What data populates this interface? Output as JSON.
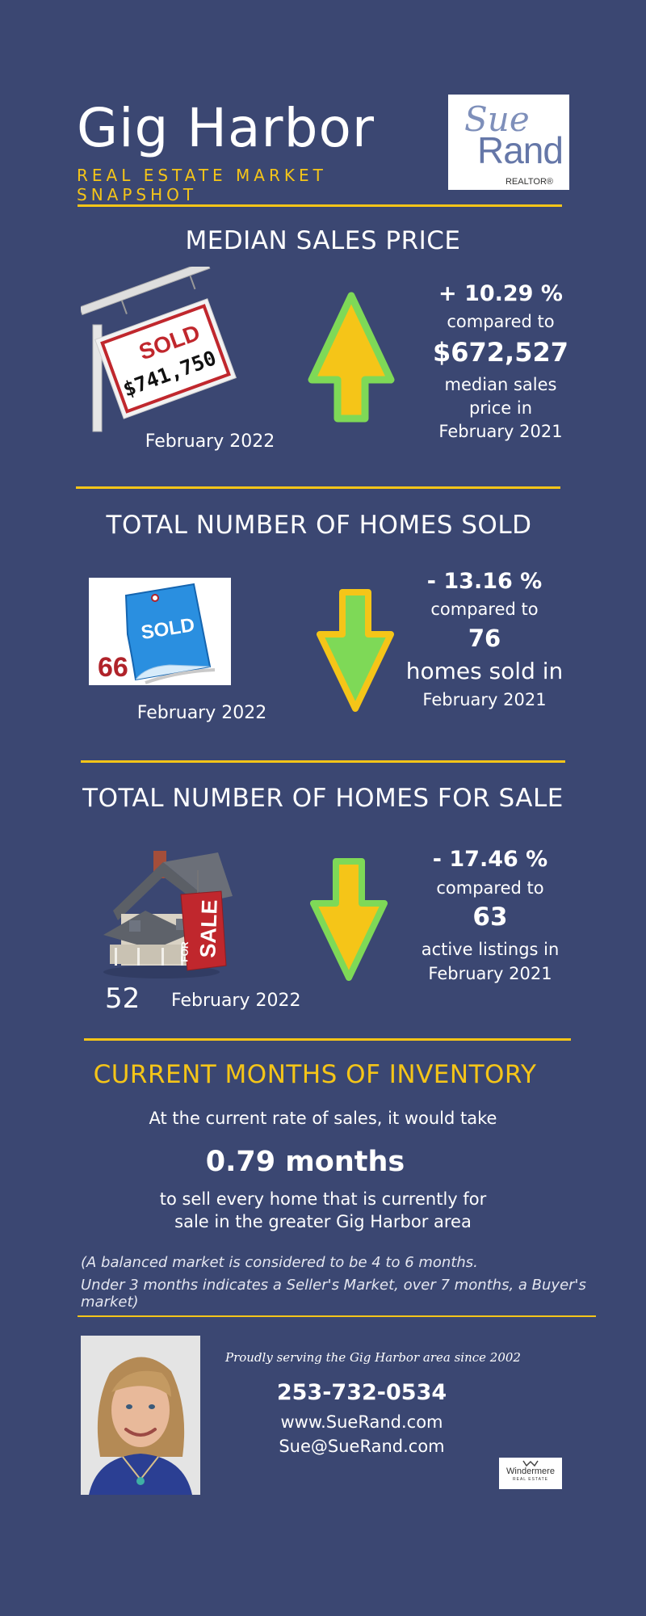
{
  "header": {
    "title": "Gig Harbor",
    "subtitle": "REAL ESTATE MARKET SNAPSHOT",
    "logo_first": "Sue",
    "logo_last": "Rand",
    "logo_realtor": "REALTOR®"
  },
  "median": {
    "heading": "MEDIAN SALES PRICE",
    "sign_sold": "SOLD",
    "sign_price": "$741,750",
    "date": "February  2022",
    "change": "+ 10.29 %",
    "compared": "compared to",
    "prev_value": "$672,527",
    "desc_line1": "median sales",
    "desc_line2": "price in",
    "prev_date": "February  2021",
    "arrow": "up-arrow-icon"
  },
  "sold": {
    "heading": "TOTAL NUMBER OF HOMES SOLD",
    "tag_label": "SOLD",
    "count": "66",
    "date": "February  2022",
    "change": "- 13.16 %",
    "compared": "compared to",
    "prev_value": "76",
    "desc": "homes sold in",
    "prev_date": "February  2021",
    "arrow": "down-arrow-icon"
  },
  "for_sale": {
    "heading": "TOTAL NUMBER OF HOMES FOR SALE",
    "sign_for": "FOR",
    "sign_sale": "SALE",
    "count": "52",
    "date": "February 2022",
    "change": "- 17.46 %",
    "compared": "compared to",
    "prev_value": "63",
    "desc": "active listings in",
    "prev_date": "February  2021",
    "arrow": "down-arrow-icon"
  },
  "inventory": {
    "heading": "CURRENT MONTHS OF INVENTORY",
    "line1": "At the current rate of sales, it would take",
    "value": "0.79 months",
    "line2": "to sell every home that is currently for",
    "line3": "sale in the greater Gig Harbor area",
    "note1": "(A balanced market is considered to be 4 to 6 months.",
    "note2": "Under 3 months indicates a Seller's Market, over 7 months, a Buyer's market)"
  },
  "contact": {
    "tagline": "Proudly serving the Gig Harbor area since 2002",
    "phone": "253-732-0534",
    "website": "www.SueRand.com",
    "email": "Sue@SueRand.com",
    "brokerage": "Windermere",
    "brokerage_sub": "REAL ESTATE"
  },
  "colors": {
    "background": "#3b4772",
    "accent": "#f5c518",
    "arrow_fill": "#f5c518",
    "arrow_border": "#7ed957",
    "sold_red": "#c0272d"
  }
}
